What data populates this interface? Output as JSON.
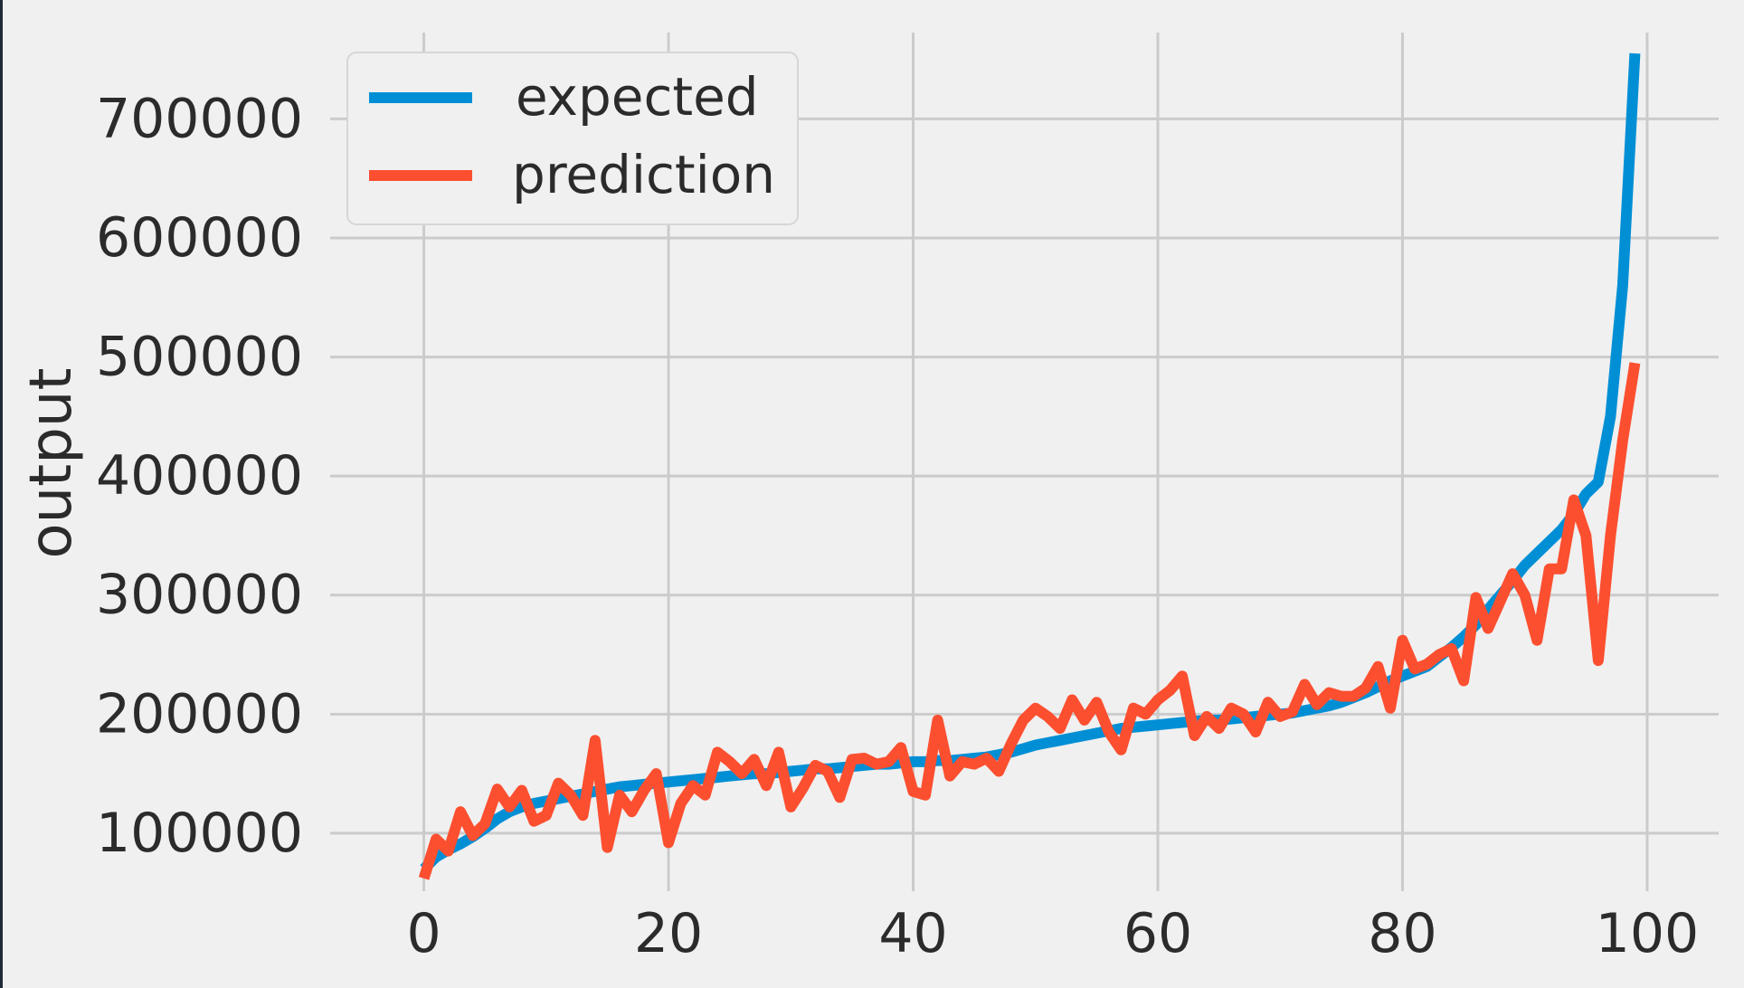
{
  "chart_data": {
    "type": "line",
    "title": "",
    "xlabel": "",
    "ylabel": "output",
    "xlim": [
      -3,
      102
    ],
    "ylim": [
      30000,
      790000
    ],
    "xticks": [
      0,
      20,
      40,
      60,
      80,
      100
    ],
    "yticks": [
      100000,
      200000,
      300000,
      400000,
      500000,
      600000,
      700000
    ],
    "xtick_labels": [
      "0",
      "20",
      "40",
      "60",
      "80",
      "100"
    ],
    "ytick_labels": [
      "100000",
      "200000",
      "300000",
      "400000",
      "500000",
      "600000",
      "700000"
    ],
    "grid": true,
    "style": "fivethirtyeight",
    "legend_position": "upper-left",
    "colors": {
      "background": "#f0f0f0",
      "outer_border": "#1f2937",
      "grid": "#cbcbcb",
      "text": "#2b2b2b"
    },
    "x": [
      0,
      1,
      2,
      3,
      4,
      5,
      6,
      7,
      8,
      9,
      10,
      11,
      12,
      13,
      14,
      15,
      16,
      17,
      18,
      19,
      20,
      21,
      22,
      23,
      24,
      25,
      26,
      27,
      28,
      29,
      30,
      31,
      32,
      33,
      34,
      35,
      36,
      37,
      38,
      39,
      40,
      41,
      42,
      43,
      44,
      45,
      46,
      47,
      48,
      49,
      50,
      51,
      52,
      53,
      54,
      55,
      56,
      57,
      58,
      59,
      60,
      61,
      62,
      63,
      64,
      65,
      66,
      67,
      68,
      69,
      70,
      71,
      72,
      73,
      74,
      75,
      76,
      77,
      78,
      79,
      80,
      81,
      82,
      83,
      84,
      85,
      86,
      87,
      88,
      89,
      90,
      91,
      92,
      93,
      94,
      95,
      96,
      97,
      98,
      99
    ],
    "series": [
      {
        "name": "expected",
        "color": "#008fd5",
        "values": [
          70000,
          80000,
          86000,
          91000,
          97000,
          104000,
          112000,
          118000,
          122000,
          125000,
          127000,
          129000,
          131000,
          133000,
          135000,
          137000,
          139000,
          140000,
          141000,
          142000,
          143000,
          144000,
          145000,
          146000,
          147000,
          148000,
          149000,
          150000,
          150000,
          151000,
          152000,
          153000,
          154000,
          154000,
          155000,
          156000,
          157000,
          158000,
          158000,
          159000,
          160000,
          160000,
          161000,
          161000,
          162000,
          163000,
          164000,
          166000,
          168000,
          171000,
          174000,
          176000,
          178000,
          180000,
          182000,
          184000,
          186000,
          188000,
          189000,
          190000,
          191000,
          192000,
          193000,
          194000,
          195000,
          195000,
          196000,
          197000,
          198000,
          199000,
          200000,
          201000,
          203000,
          205000,
          207000,
          210000,
          214000,
          218000,
          223000,
          228000,
          232000,
          236000,
          240000,
          248000,
          256000,
          265000,
          275000,
          288000,
          300000,
          312000,
          325000,
          335000,
          345000,
          355000,
          368000,
          385000,
          395000,
          450000,
          560000,
          755000
        ]
      },
      {
        "name": "prediction",
        "color": "#fc4f30",
        "values": [
          62000,
          95000,
          85000,
          118000,
          98000,
          108000,
          137000,
          122000,
          136000,
          110000,
          115000,
          142000,
          132000,
          115000,
          178000,
          88000,
          132000,
          118000,
          136000,
          150000,
          92000,
          125000,
          140000,
          132000,
          168000,
          160000,
          150000,
          162000,
          140000,
          168000,
          122000,
          138000,
          157000,
          152000,
          130000,
          162000,
          163000,
          158000,
          160000,
          172000,
          135000,
          132000,
          195000,
          148000,
          160000,
          158000,
          163000,
          152000,
          175000,
          195000,
          205000,
          198000,
          188000,
          212000,
          195000,
          210000,
          185000,
          170000,
          205000,
          200000,
          212000,
          220000,
          232000,
          182000,
          198000,
          188000,
          205000,
          200000,
          185000,
          210000,
          198000,
          202000,
          225000,
          208000,
          218000,
          215000,
          215000,
          222000,
          240000,
          205000,
          262000,
          238000,
          242000,
          250000,
          255000,
          228000,
          298000,
          272000,
          295000,
          318000,
          300000,
          262000,
          322000,
          322000,
          380000,
          350000,
          245000,
          350000,
          430000,
          495000
        ]
      }
    ]
  }
}
